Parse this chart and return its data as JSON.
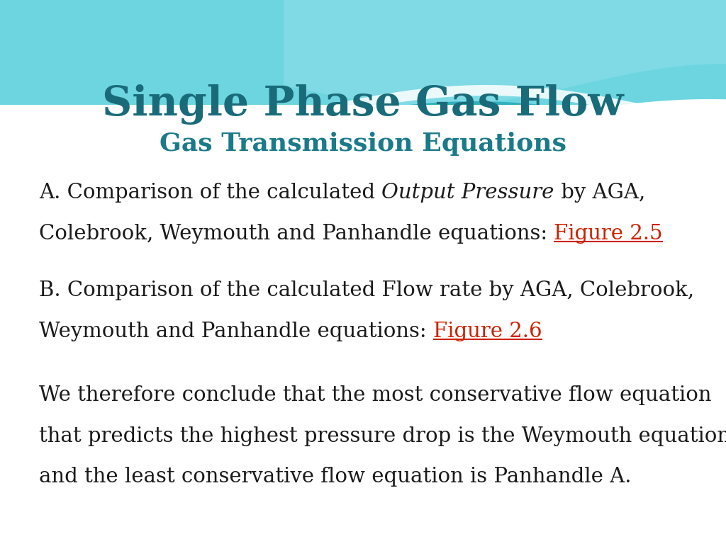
{
  "title": "Single Phase Gas Flow",
  "subtitle": "Gas Transmission Equations",
  "title_color": "#1a6b7a",
  "subtitle_color": "#1a7a8a",
  "text_color": "#1a1a1a",
  "link_color": "#cc2200",
  "bg_color": "#ffffff",
  "wave_top_color": "#5ecfdb",
  "wave_mid_color": "#4ab8c8",
  "wave_dark_color": "#2a9aaa",
  "wave_light_color": "#aae8ee",
  "line_A_pre": "A. Comparison of the calculated ",
  "line_A_italic": "Output Pressure",
  "line_A_post": " by AGA,",
  "line_A2_pre": "Colebrook, Weymouth and Panhandle equations: ",
  "link_A": "Figure 2.5",
  "line_B1": "B. Comparison of the calculated Flow rate by AGA, Colebrook,",
  "line_B2_pre": "Weymouth and Panhandle equations: ",
  "link_B": "Figure 2.6",
  "line_C1": "We therefore conclude that the most conservative flow equation",
  "line_C2": "that predicts the highest pressure drop is the Weymouth equation",
  "line_C3": "and the least conservative flow equation is Panhandle A.",
  "body_fontsize": 21,
  "title_fontsize": 42,
  "subtitle_fontsize": 26
}
